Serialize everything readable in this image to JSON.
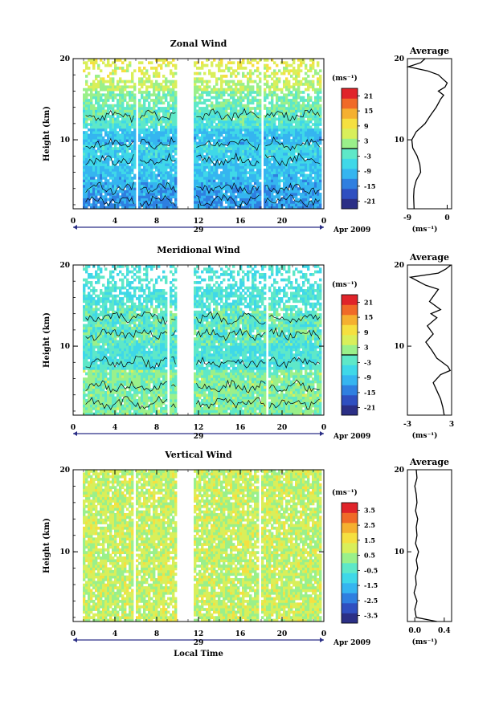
{
  "colormap": [
    "#2b2f86",
    "#2f4fc0",
    "#2f7fe0",
    "#35b5f0",
    "#3fd8e8",
    "#5ee8c8",
    "#9af08a",
    "#d9ef5a",
    "#f5e040",
    "#f5b030",
    "#f06a28",
    "#e0242a"
  ],
  "chart_data": [
    {
      "type": "heatmap",
      "title": "Zonal Wind",
      "ylabel": "Height (km)",
      "ylim": [
        1.5,
        20
      ],
      "xlim": [
        0,
        24
      ],
      "xticks": [
        "0",
        "4",
        "8",
        "12",
        "16",
        "20",
        "0"
      ],
      "yticks": [
        "10",
        "20"
      ],
      "date_label": "29",
      "month_label": "Apr 2009",
      "data_gaps_hours": [
        [
          0,
          1.0
        ],
        [
          6.0,
          6.3
        ],
        [
          10.0,
          11.6
        ],
        [
          18.0,
          18.3
        ],
        [
          23.7,
          24
        ]
      ],
      "colorbar": {
        "unit": "(ms⁻¹)",
        "ticks": [
          "21",
          "15",
          "9",
          "3",
          "-3",
          "-9",
          "-15",
          "-21"
        ],
        "range": [
          -24,
          24
        ]
      },
      "profile": {
        "title": "Average",
        "xlabel": "(ms⁻¹)",
        "xticks": [
          "-9",
          "0"
        ],
        "xlim": [
          -9,
          1
        ],
        "heights": [
          1.5,
          3,
          4,
          5,
          6,
          7,
          8,
          9,
          10,
          11,
          12,
          13,
          14,
          15,
          15.5,
          16,
          16.5,
          17,
          17.5,
          18,
          18.5,
          19,
          19.5,
          20
        ],
        "values": [
          -7.5,
          -7.6,
          -7.5,
          -7.0,
          -6.0,
          -6.2,
          -6.8,
          -7.8,
          -8.0,
          -7.0,
          -5.0,
          -3.8,
          -2.5,
          -1.5,
          -0.8,
          -2.0,
          -0.5,
          0.0,
          -1.0,
          -2.0,
          -4.5,
          -8.8,
          -6.0,
          -5.0
        ]
      }
    },
    {
      "type": "heatmap",
      "title": "Meridional Wind",
      "ylabel": "Height (km)",
      "ylim": [
        1.5,
        20
      ],
      "xlim": [
        0,
        24
      ],
      "xticks": [
        "0",
        "4",
        "8",
        "12",
        "16",
        "20",
        "0"
      ],
      "yticks": [
        "10",
        "20"
      ],
      "date_label": "29",
      "month_label": "Apr 2009",
      "data_gaps_hours": [
        [
          0,
          1.0
        ],
        [
          9.1,
          9.3
        ],
        [
          10.0,
          11.6
        ],
        [
          18.5,
          18.7
        ],
        [
          23.7,
          24
        ]
      ],
      "colorbar": {
        "unit": "(ms⁻¹)",
        "ticks": [
          "21",
          "15",
          "9",
          "3",
          "-3",
          "-9",
          "-15",
          "-21"
        ],
        "range": [
          -24,
          24
        ]
      },
      "profile": {
        "title": "Average",
        "xlabel": "(ms⁻¹)",
        "xticks": [
          "-3",
          "3"
        ],
        "xlim": [
          -3,
          3
        ],
        "heights": [
          1.5,
          2.5,
          3.5,
          4.5,
          5.5,
          6.5,
          7.0,
          7.5,
          8.5,
          9.5,
          10.5,
          11.5,
          12.5,
          13.5,
          14.0,
          14.5,
          15.5,
          16.5,
          17.0,
          17.5,
          18.5,
          19.0,
          19.5,
          20
        ],
        "values": [
          2.0,
          1.8,
          1.5,
          1.0,
          0.5,
          1.5,
          2.8,
          2.5,
          1.0,
          0.3,
          -0.5,
          0.5,
          -0.3,
          1.0,
          0.2,
          1.5,
          0.0,
          0.8,
          1.2,
          -0.5,
          -2.6,
          1.2,
          2.2,
          2.9
        ]
      }
    },
    {
      "type": "heatmap",
      "title": "Vertical Wind",
      "ylabel": "Height (km)",
      "xlabel": "Local Time",
      "ylim": [
        1.5,
        20
      ],
      "xlim": [
        0,
        24
      ],
      "xticks": [
        "0",
        "4",
        "8",
        "12",
        "16",
        "20",
        "0"
      ],
      "yticks": [
        "10",
        "20"
      ],
      "date_label": "29",
      "month_label": "Apr 2009",
      "data_gaps_hours": [
        [
          0,
          1.0
        ],
        [
          5.8,
          6.0
        ],
        [
          10.0,
          11.6
        ],
        [
          17.8,
          18.0
        ],
        [
          23.7,
          24
        ]
      ],
      "colorbar": {
        "unit": "(ms⁻¹)",
        "ticks": [
          "3.5",
          "2.5",
          "1.5",
          "0.5",
          "-0.5",
          "-1.5",
          "-2.5",
          "-3.5"
        ],
        "range": [
          -4,
          4
        ]
      },
      "profile": {
        "title": "Average",
        "xlabel": "(ms⁻¹)",
        "xticks": [
          "0.0",
          "0.4"
        ],
        "xlim": [
          -0.1,
          0.5
        ],
        "heights": [
          1.5,
          2,
          3,
          4,
          5,
          6,
          7,
          8,
          9,
          10,
          11,
          12,
          13,
          14,
          15,
          16,
          17,
          18,
          19,
          20
        ],
        "values": [
          0.3,
          0.02,
          0.0,
          0.03,
          -0.01,
          0.02,
          0.01,
          0.04,
          0.02,
          0.05,
          0.01,
          0.03,
          0.02,
          0.04,
          0.01,
          0.03,
          0.02,
          0.0,
          0.03,
          0.02
        ]
      }
    }
  ]
}
